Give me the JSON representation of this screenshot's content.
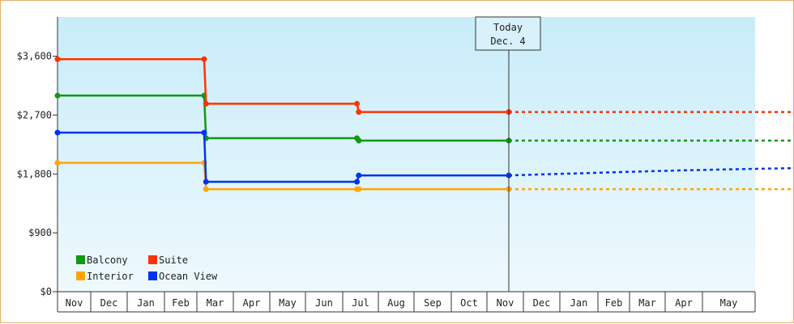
{
  "chart_data": {
    "type": "line",
    "step": true,
    "x_labels": [
      "Nov",
      "Dec",
      "Jan",
      "Feb",
      "Mar",
      "Apr",
      "May",
      "Jun",
      "Jul",
      "Aug",
      "Sep",
      "Oct",
      "Nov",
      "Dec",
      "Jan",
      "Feb",
      "Mar",
      "Apr",
      "May"
    ],
    "y_ticks": [
      "$0",
      "$900",
      "$1,800",
      "$2,700",
      "$3,600"
    ],
    "ylim": [
      0,
      4200
    ],
    "grid": "vertical",
    "legend": {
      "placement": "bottom-left",
      "items": [
        "Balcony",
        "Suite",
        "Interior",
        "Ocean View"
      ]
    },
    "today": {
      "line1": "Today",
      "line2": "Dec. 4",
      "x": 12.6
    },
    "series": [
      {
        "name": "Balcony",
        "color": "#119911",
        "points": [
          [
            0,
            2998
          ],
          [
            4.2,
            2998
          ],
          [
            4.25,
            2347
          ],
          [
            8.4,
            2347
          ],
          [
            8.45,
            2310
          ],
          [
            12.6,
            2310
          ]
        ],
        "projection": [
          [
            12.6,
            2310
          ],
          [
            19.8,
            2310
          ]
        ]
      },
      {
        "name": "Suite",
        "color": "#ff3300",
        "points": [
          [
            0,
            3555
          ],
          [
            4.2,
            3555
          ],
          [
            4.25,
            2873
          ],
          [
            8.4,
            2873
          ],
          [
            8.45,
            2747
          ],
          [
            12.6,
            2747
          ]
        ],
        "projection": [
          [
            12.6,
            2747
          ],
          [
            19.8,
            2747
          ]
        ]
      },
      {
        "name": "Interior",
        "color": "#ffa500",
        "points": [
          [
            0,
            1970
          ],
          [
            4.2,
            1970
          ],
          [
            4.25,
            1568
          ],
          [
            8.4,
            1568
          ],
          [
            8.45,
            1568
          ],
          [
            12.6,
            1568
          ]
        ],
        "projection": [
          [
            12.6,
            1568
          ],
          [
            19.8,
            1568
          ]
        ]
      },
      {
        "name": "Ocean View",
        "color": "#0033ee",
        "points": [
          [
            0,
            2432
          ],
          [
            4.2,
            2432
          ],
          [
            4.25,
            1680
          ],
          [
            8.4,
            1680
          ],
          [
            8.45,
            1778
          ],
          [
            12.6,
            1778
          ]
        ],
        "projection": [
          [
            12.6,
            1778
          ],
          [
            14.5,
            1810
          ],
          [
            16.5,
            1840
          ],
          [
            17.5,
            1855
          ],
          [
            18.5,
            1870
          ],
          [
            19.8,
            1890
          ]
        ]
      }
    ]
  }
}
